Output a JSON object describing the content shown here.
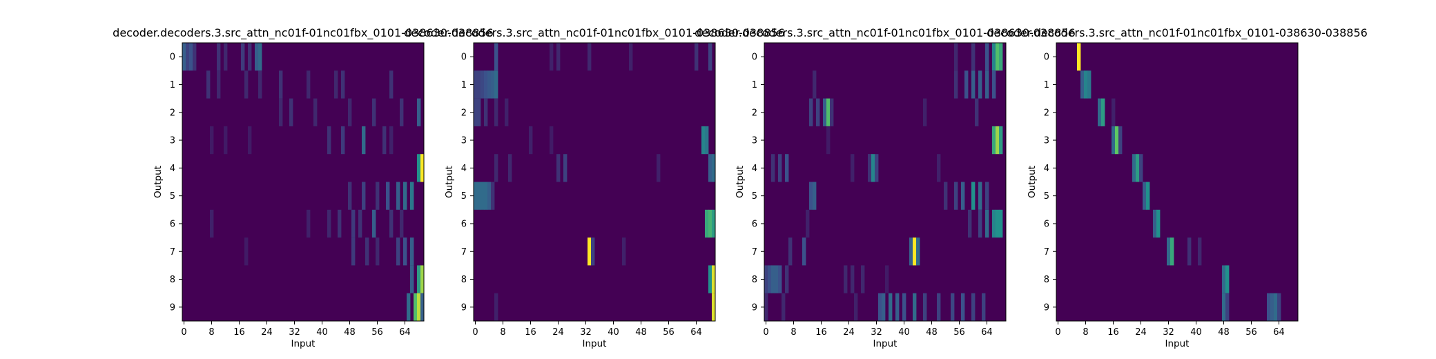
{
  "chart_data": [
    {
      "type": "heatmap",
      "title": "decoder.decoders.3.src_attn_nc01f-01nc01fbx_0101-038630-038856",
      "xlabel": "Input",
      "ylabel": "Output",
      "x_ticks": [
        0,
        8,
        16,
        24,
        32,
        40,
        48,
        56,
        64
      ],
      "y_ticks": [
        0,
        1,
        2,
        3,
        4,
        5,
        6,
        7,
        8,
        9
      ],
      "x_range": [
        0,
        70
      ],
      "colormap": "viridis",
      "cells": [
        [
          0,
          0,
          0.3
        ],
        [
          1,
          0,
          0.2
        ],
        [
          2,
          0,
          0.25
        ],
        [
          3,
          0,
          0.15
        ],
        [
          10,
          0,
          0.15
        ],
        [
          12,
          0,
          0.12
        ],
        [
          17,
          0,
          0.18
        ],
        [
          19,
          0,
          0.15
        ],
        [
          21,
          0,
          0.3
        ],
        [
          22,
          0,
          0.35
        ],
        [
          7,
          1,
          0.15
        ],
        [
          10,
          1,
          0.12
        ],
        [
          18,
          1,
          0.12
        ],
        [
          22,
          1,
          0.12
        ],
        [
          28,
          1,
          0.15
        ],
        [
          36,
          1,
          0.12
        ],
        [
          44,
          1,
          0.12
        ],
        [
          46,
          1,
          0.15
        ],
        [
          60,
          1,
          0.15
        ],
        [
          28,
          2,
          0.12
        ],
        [
          31,
          2,
          0.15
        ],
        [
          38,
          2,
          0.12
        ],
        [
          48,
          2,
          0.12
        ],
        [
          55,
          2,
          0.15
        ],
        [
          63,
          2,
          0.15
        ],
        [
          68,
          2,
          0.3
        ],
        [
          8,
          3,
          0.08
        ],
        [
          12,
          3,
          0.08
        ],
        [
          19,
          3,
          0.08
        ],
        [
          42,
          3,
          0.15
        ],
        [
          46,
          3,
          0.18
        ],
        [
          52,
          3,
          0.35
        ],
        [
          58,
          3,
          0.15
        ],
        [
          60,
          3,
          0.1
        ],
        [
          68,
          4,
          0.5
        ],
        [
          69,
          4,
          1.0
        ],
        [
          48,
          5,
          0.15
        ],
        [
          52,
          5,
          0.2
        ],
        [
          56,
          5,
          0.15
        ],
        [
          59,
          5,
          0.25
        ],
        [
          62,
          5,
          0.3
        ],
        [
          64,
          5,
          0.35
        ],
        [
          66,
          5,
          0.4
        ],
        [
          8,
          6,
          0.1
        ],
        [
          36,
          6,
          0.1
        ],
        [
          42,
          6,
          0.12
        ],
        [
          45,
          6,
          0.15
        ],
        [
          49,
          6,
          0.18
        ],
        [
          51,
          6,
          0.15
        ],
        [
          55,
          6,
          0.3
        ],
        [
          60,
          6,
          0.15
        ],
        [
          63,
          6,
          0.12
        ],
        [
          18,
          7,
          0.08
        ],
        [
          49,
          7,
          0.18
        ],
        [
          53,
          7,
          0.15
        ],
        [
          56,
          7,
          0.12
        ],
        [
          62,
          7,
          0.2
        ],
        [
          64,
          7,
          0.25
        ],
        [
          66,
          7,
          0.3
        ],
        [
          66,
          8,
          0.3
        ],
        [
          68,
          8,
          0.55
        ],
        [
          69,
          8,
          0.85
        ],
        [
          65,
          9,
          0.35
        ],
        [
          67,
          9,
          0.7
        ],
        [
          68,
          9,
          0.9
        ],
        [
          69,
          9,
          0.3
        ]
      ]
    },
    {
      "type": "heatmap",
      "title": "decoder.decoders.3.src_attn_nc01f-01nc01fbx_0101-038630-038856",
      "xlabel": "Input",
      "ylabel": "Output",
      "x_ticks": [
        0,
        8,
        16,
        24,
        32,
        40,
        48,
        56,
        64
      ],
      "y_ticks": [
        0,
        1,
        2,
        3,
        4,
        5,
        6,
        7,
        8,
        9
      ],
      "x_range": [
        0,
        70
      ],
      "colormap": "viridis",
      "cells": [
        [
          6,
          0,
          0.25
        ],
        [
          22,
          0,
          0.1
        ],
        [
          24,
          0,
          0.12
        ],
        [
          33,
          0,
          0.12
        ],
        [
          45,
          0,
          0.1
        ],
        [
          64,
          0,
          0.15
        ],
        [
          68,
          0,
          0.2
        ],
        [
          0,
          1,
          0.2
        ],
        [
          1,
          1,
          0.2
        ],
        [
          2,
          1,
          0.22
        ],
        [
          3,
          1,
          0.25
        ],
        [
          4,
          1,
          0.28
        ],
        [
          5,
          1,
          0.3
        ],
        [
          6,
          1,
          0.35
        ],
        [
          0,
          2,
          0.2
        ],
        [
          1,
          2,
          0.2
        ],
        [
          3,
          2,
          0.15
        ],
        [
          6,
          2,
          0.12
        ],
        [
          9,
          2,
          0.1
        ],
        [
          16,
          3,
          0.1
        ],
        [
          22,
          3,
          0.08
        ],
        [
          66,
          3,
          0.45
        ],
        [
          67,
          3,
          0.4
        ],
        [
          6,
          4,
          0.12
        ],
        [
          10,
          4,
          0.12
        ],
        [
          24,
          4,
          0.15
        ],
        [
          26,
          4,
          0.2
        ],
        [
          53,
          4,
          0.1
        ],
        [
          68,
          4,
          0.3
        ],
        [
          69,
          4,
          0.35
        ],
        [
          0,
          5,
          0.35
        ],
        [
          1,
          5,
          0.35
        ],
        [
          2,
          5,
          0.35
        ],
        [
          3,
          5,
          0.35
        ],
        [
          4,
          5,
          0.3
        ],
        [
          5,
          5,
          0.15
        ],
        [
          67,
          6,
          0.6
        ],
        [
          68,
          6,
          0.65
        ],
        [
          69,
          6,
          0.55
        ],
        [
          33,
          7,
          1.0
        ],
        [
          34,
          7,
          0.2
        ],
        [
          43,
          7,
          0.1
        ],
        [
          68,
          8,
          0.5
        ],
        [
          69,
          8,
          0.95
        ],
        [
          6,
          9,
          0.1
        ],
        [
          69,
          9,
          0.95
        ]
      ]
    },
    {
      "type": "heatmap",
      "title": "decoder.decoders.3.src_attn_nc01f-01nc01fbx_0101-038630-038856",
      "xlabel": "Input",
      "ylabel": "Output",
      "x_ticks": [
        0,
        8,
        16,
        24,
        32,
        40,
        48,
        56,
        64
      ],
      "y_ticks": [
        0,
        1,
        2,
        3,
        4,
        5,
        6,
        7,
        8,
        9
      ],
      "x_range": [
        0,
        70
      ],
      "colormap": "viridis",
      "cells": [
        [
          55,
          0,
          0.12
        ],
        [
          60,
          0,
          0.15
        ],
        [
          64,
          0,
          0.25
        ],
        [
          66,
          0,
          0.45
        ],
        [
          67,
          0,
          0.7
        ],
        [
          68,
          0,
          0.6
        ],
        [
          14,
          1,
          0.12
        ],
        [
          55,
          1,
          0.15
        ],
        [
          58,
          1,
          0.25
        ],
        [
          60,
          1,
          0.3
        ],
        [
          62,
          1,
          0.3
        ],
        [
          64,
          1,
          0.3
        ],
        [
          66,
          1,
          0.25
        ],
        [
          13,
          2,
          0.2
        ],
        [
          15,
          2,
          0.2
        ],
        [
          17,
          2,
          0.3
        ],
        [
          18,
          2,
          0.7
        ],
        [
          19,
          2,
          0.15
        ],
        [
          46,
          2,
          0.1
        ],
        [
          61,
          2,
          0.15
        ],
        [
          18,
          3,
          0.08
        ],
        [
          66,
          3,
          0.6
        ],
        [
          67,
          3,
          0.85
        ],
        [
          68,
          3,
          0.55
        ],
        [
          2,
          4,
          0.15
        ],
        [
          4,
          4,
          0.2
        ],
        [
          6,
          4,
          0.25
        ],
        [
          25,
          4,
          0.1
        ],
        [
          30,
          4,
          0.15
        ],
        [
          30,
          4,
          0.15
        ],
        [
          31,
          4,
          0.45
        ],
        [
          32,
          4,
          0.2
        ],
        [
          50,
          4,
          0.1
        ],
        [
          13,
          5,
          0.25
        ],
        [
          14,
          5,
          0.3
        ],
        [
          52,
          5,
          0.15
        ],
        [
          55,
          5,
          0.2
        ],
        [
          57,
          5,
          0.3
        ],
        [
          60,
          5,
          0.5
        ],
        [
          62,
          5,
          0.35
        ],
        [
          64,
          5,
          0.2
        ],
        [
          12,
          6,
          0.1
        ],
        [
          59,
          6,
          0.15
        ],
        [
          62,
          6,
          0.2
        ],
        [
          64,
          6,
          0.35
        ],
        [
          66,
          6,
          0.45
        ],
        [
          67,
          6,
          0.5
        ],
        [
          68,
          6,
          0.5
        ],
        [
          7,
          7,
          0.15
        ],
        [
          11,
          7,
          0.25
        ],
        [
          42,
          7,
          0.3
        ],
        [
          43,
          7,
          1.0
        ],
        [
          44,
          7,
          0.35
        ],
        [
          0,
          8,
          0.2
        ],
        [
          1,
          8,
          0.25
        ],
        [
          2,
          8,
          0.3
        ],
        [
          3,
          8,
          0.3
        ],
        [
          4,
          8,
          0.25
        ],
        [
          6,
          8,
          0.15
        ],
        [
          23,
          8,
          0.12
        ],
        [
          25,
          8,
          0.12
        ],
        [
          28,
          8,
          0.12
        ],
        [
          35,
          8,
          0.08
        ],
        [
          0,
          9,
          0.12
        ],
        [
          5,
          9,
          0.12
        ],
        [
          26,
          9,
          0.1
        ],
        [
          33,
          9,
          0.25
        ],
        [
          34,
          9,
          0.3
        ],
        [
          36,
          9,
          0.35
        ],
        [
          38,
          9,
          0.3
        ],
        [
          40,
          9,
          0.25
        ],
        [
          43,
          9,
          0.35
        ],
        [
          46,
          9,
          0.2
        ],
        [
          50,
          9,
          0.2
        ],
        [
          54,
          9,
          0.22
        ],
        [
          57,
          9,
          0.25
        ],
        [
          60,
          9,
          0.2
        ],
        [
          63,
          9,
          0.2
        ]
      ]
    },
    {
      "type": "heatmap",
      "title": "decoder.decoders.3.src_attn_nc01f-01nc01fbx_0101-038630-038856",
      "xlabel": "Input",
      "ylabel": "Output",
      "x_ticks": [
        0,
        8,
        16,
        24,
        32,
        40,
        48,
        56,
        64
      ],
      "y_ticks": [
        0,
        1,
        2,
        3,
        4,
        5,
        6,
        7,
        8,
        9
      ],
      "x_range": [
        0,
        70
      ],
      "colormap": "viridis",
      "cells": [
        [
          6,
          0,
          1.0
        ],
        [
          7,
          1,
          0.3
        ],
        [
          8,
          1,
          0.45
        ],
        [
          9,
          1,
          0.4
        ],
        [
          12,
          2,
          0.35
        ],
        [
          13,
          2,
          0.55
        ],
        [
          16,
          2,
          0.1
        ],
        [
          16,
          3,
          0.35
        ],
        [
          17,
          3,
          0.75
        ],
        [
          18,
          3,
          0.2
        ],
        [
          22,
          4,
          0.35
        ],
        [
          23,
          4,
          0.55
        ],
        [
          24,
          4,
          0.2
        ],
        [
          25,
          5,
          0.3
        ],
        [
          26,
          5,
          0.5
        ],
        [
          28,
          6,
          0.3
        ],
        [
          29,
          6,
          0.5
        ],
        [
          32,
          7,
          0.35
        ],
        [
          33,
          7,
          0.6
        ],
        [
          38,
          7,
          0.15
        ],
        [
          41,
          7,
          0.12
        ],
        [
          48,
          8,
          0.35
        ],
        [
          49,
          8,
          0.5
        ],
        [
          48,
          9,
          0.35
        ],
        [
          49,
          9,
          0.2
        ],
        [
          61,
          9,
          0.25
        ],
        [
          62,
          9,
          0.3
        ],
        [
          63,
          9,
          0.35
        ],
        [
          64,
          9,
          0.2
        ]
      ]
    }
  ]
}
